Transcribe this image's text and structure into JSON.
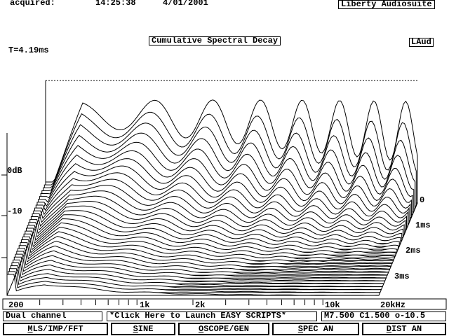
{
  "header": {
    "acquired_label": "acquired:",
    "time": "14:25:38",
    "date": "4/01/2001",
    "app_name": "Liberty Audiosuite"
  },
  "plot": {
    "title": "Cumulative Spectral Decay",
    "badge": "LAud",
    "window": "T=4.19ms",
    "level_labels": [
      "0dB",
      "-10"
    ],
    "time_labels": [
      "0",
      "1ms",
      "2ms",
      "3ms"
    ],
    "freq_labels": [
      "200",
      "1k",
      "2k",
      "10k",
      "20kHz"
    ]
  },
  "status_bar": {
    "mode": "Dual channel",
    "scripts": "*Click Here to Launch EASY SCRIPTS*",
    "settings": "M7.500 C1.500 o-10.5"
  },
  "buttons": [
    "MLS/IMP/FFT",
    "SINE",
    "OSCOPE/GEN",
    "SPEC AN",
    "DIST AN"
  ]
}
